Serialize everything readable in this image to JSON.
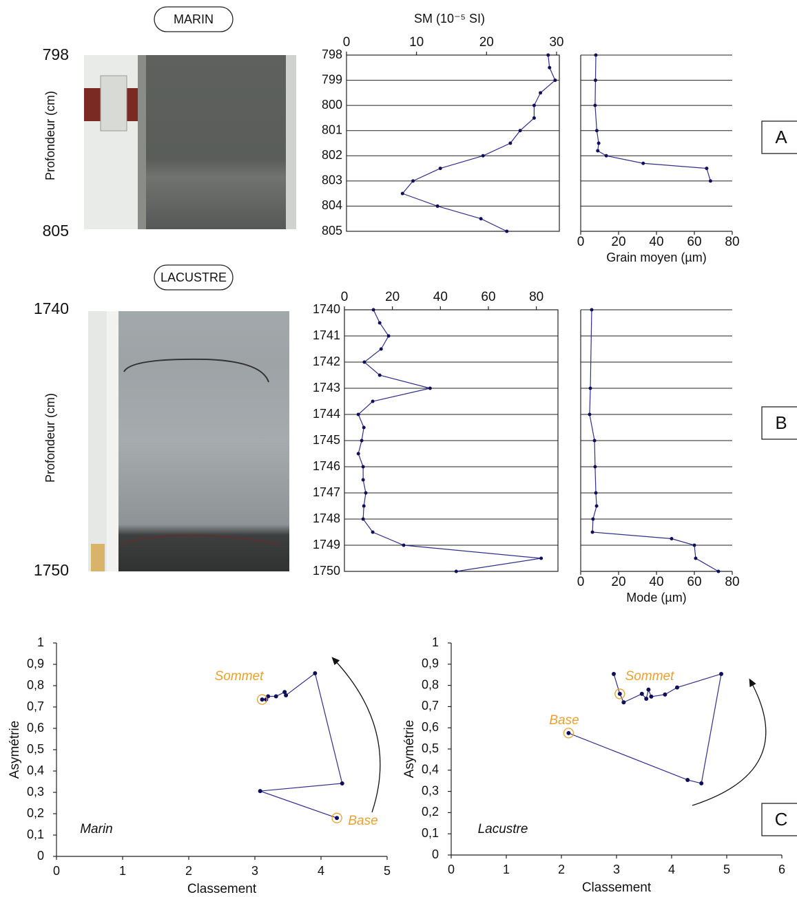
{
  "panels": [
    "A",
    "B",
    "C"
  ],
  "cores": [
    {
      "label": "MARIN",
      "top": "798",
      "bottom": "805",
      "y_label": "Profondeur (cm)"
    },
    {
      "label": "LACUSTRE",
      "top": "1740",
      "bottom": "1750",
      "y_label": "Profondeur (cm)"
    }
  ],
  "chart_data": [
    {
      "type": "profile",
      "x_label": "SM (10⁻⁵ SI)",
      "x_axis_position": "top",
      "frame": true,
      "ytick_labels": true,
      "y_inverted": true,
      "xlim": [
        0,
        30.4
      ],
      "xticks": [
        0,
        10,
        20,
        30
      ],
      "ylim": [
        798,
        805
      ],
      "yticks": [
        798,
        799,
        800,
        801,
        802,
        803,
        804,
        805
      ],
      "color": "#2e2e8c",
      "depth": [
        798,
        798.5,
        799,
        799.5,
        800,
        800.5,
        801,
        801.5,
        802,
        802.5,
        803,
        803.5,
        804,
        804.5,
        805
      ],
      "values": [
        28.8,
        29.0,
        29.8,
        27.7,
        26.8,
        26.8,
        24.8,
        23.4,
        19.5,
        13.4,
        9.5,
        8.0,
        13.0,
        19.2,
        22.9
      ]
    },
    {
      "type": "profile",
      "x_label": "Grain moyen (µm)",
      "x_axis_position": "bottom",
      "frame": false,
      "ytick_labels": false,
      "y_inverted": true,
      "xlim": [
        0,
        80
      ],
      "xticks": [
        0,
        20,
        40,
        60,
        80
      ],
      "ylim": [
        798,
        805
      ],
      "yticks": [
        798,
        799,
        800,
        801,
        802,
        803,
        804,
        805
      ],
      "color": "#2e2e8c",
      "depth": [
        798,
        799,
        800,
        801,
        801.5,
        801.8,
        802,
        802.3,
        802.5,
        803
      ],
      "values": [
        8.0,
        7.8,
        7.6,
        8.5,
        9.5,
        9.0,
        13.5,
        33,
        66.5,
        68.5
      ]
    },
    {
      "type": "profile",
      "x_axis_position": "top",
      "frame": true,
      "ytick_labels": true,
      "y_inverted": true,
      "xlim": [
        0,
        89
      ],
      "xticks": [
        0,
        20,
        40,
        60,
        80
      ],
      "ylim": [
        1740,
        1750
      ],
      "yticks": [
        1740,
        1741,
        1742,
        1743,
        1744,
        1745,
        1746,
        1747,
        1748,
        1749,
        1750
      ],
      "color": "#2e2e8c",
      "depth": [
        1740,
        1740.5,
        1741,
        1741.5,
        1742,
        1742.5,
        1743,
        1743.5,
        1744,
        1744.5,
        1745,
        1745.5,
        1746,
        1746.5,
        1747,
        1747.5,
        1748,
        1748.5,
        1749,
        1749.5,
        1750
      ],
      "values": [
        12.1,
        14.7,
        18.4,
        15.3,
        8.3,
        14.7,
        35.7,
        11.8,
        5.8,
        8.1,
        7.2,
        5.8,
        7.8,
        7.8,
        8.9,
        8.1,
        7.8,
        11.8,
        24.7,
        82.0,
        46.6
      ]
    },
    {
      "type": "profile",
      "x_label": "Mode (µm)",
      "x_axis_position": "bottom",
      "frame": false,
      "ytick_labels": false,
      "y_inverted": true,
      "xlim": [
        0,
        80
      ],
      "xticks": [
        0,
        20,
        40,
        60,
        80
      ],
      "ylim": [
        1740,
        1750
      ],
      "yticks": [
        1740,
        1741,
        1742,
        1743,
        1744,
        1745,
        1746,
        1747,
        1748,
        1749,
        1750
      ],
      "color": "#2e2e8c",
      "depth": [
        1740,
        1743,
        1744,
        1745,
        1746,
        1747,
        1747.5,
        1748,
        1748.5,
        1748.75,
        1749,
        1749.5,
        1750
      ],
      "values": [
        5.8,
        5.1,
        4.7,
        7.3,
        7.6,
        8.0,
        8.4,
        6.5,
        6.2,
        48,
        60,
        60.7,
        72.7
      ]
    },
    {
      "type": "scatter",
      "label": "Marin",
      "x_label": "Classement",
      "y_label": "Asymétrie",
      "annotations": [
        "Sommet",
        "Base"
      ],
      "annotation_color": "#e8a030",
      "color": "#2e2e8c",
      "xlim": [
        0,
        5
      ],
      "xticks": [
        0,
        1,
        2,
        3,
        4,
        5
      ],
      "ylim": [
        0,
        1
      ],
      "yticks": [
        0,
        {
          "value": 0.1,
          "label": "0,1"
        },
        {
          "value": 0.2,
          "label": "0,2"
        },
        {
          "value": 0.3,
          "label": "0,3"
        },
        {
          "value": 0.4,
          "label": "0,4"
        },
        {
          "value": 0.5,
          "label": "0,5"
        },
        {
          "value": 0.6,
          "label": "0,6"
        },
        {
          "value": 0.7,
          "label": "0,7"
        },
        {
          "value": 0.8,
          "label": "0,8"
        },
        {
          "value": 0.9,
          "label": "0,9"
        },
        1
      ],
      "x": [
        3.11,
        3.17,
        3.2,
        3.32,
        3.45,
        3.47,
        3.91,
        4.32,
        3.08,
        4.24
      ],
      "values": [
        0.735,
        0.735,
        0.75,
        0.75,
        0.77,
        0.755,
        0.858,
        0.342,
        0.306,
        0.18
      ]
    },
    {
      "type": "scatter",
      "label": "Lacustre",
      "x_label": "Classement",
      "y_label": "Asymétrie",
      "annotations": [
        "Sommet",
        "Base"
      ],
      "annotation_color": "#e8a030",
      "color": "#2e2e8c",
      "xlim": [
        0,
        6
      ],
      "xticks": [
        0,
        1,
        2,
        3,
        4,
        5,
        6
      ],
      "ylim": [
        0,
        1
      ],
      "yticks": [
        0,
        {
          "value": 0.1,
          "label": "0,1"
        },
        {
          "value": 0.2,
          "label": "0,2"
        },
        {
          "value": 0.3,
          "label": "0,3"
        },
        {
          "value": 0.4,
          "label": "0,4"
        },
        {
          "value": 0.5,
          "label": "0,5"
        },
        {
          "value": 0.6,
          "label": "0,6"
        },
        {
          "value": 0.7,
          "label": "0,7"
        },
        {
          "value": 0.8,
          "label": "0,8"
        },
        {
          "value": 0.9,
          "label": "0,9"
        },
        1
      ],
      "x": [
        2.13,
        4.29,
        4.54,
        4.9,
        4.1,
        3.88,
        3.63,
        3.58,
        3.54,
        3.46,
        3.13,
        3.06,
        2.95
      ],
      "values": [
        0.575,
        0.354,
        0.338,
        0.854,
        0.79,
        0.757,
        0.747,
        0.78,
        0.737,
        0.76,
        0.72,
        0.76,
        0.854
      ]
    }
  ]
}
